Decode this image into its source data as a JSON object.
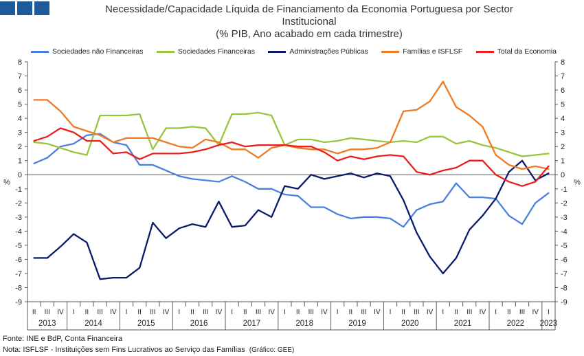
{
  "title": {
    "line1": "Necessidade/Capacidade Líquida de Financiamento da Economia Portuguesa por Sector",
    "line2": "Institucional",
    "line3": "(% PIB, Ano acabado em cada trimestre)"
  },
  "footer": {
    "source": "Fonte: INE e  BdP, Conta Financeira",
    "note": "Nota: ISFLSF - Instituições sem Fins Lucrativos ao Serviço das Famílias",
    "credit": "(Gráfico: GEE)"
  },
  "chart_data": {
    "type": "line",
    "ylabel_left": "%",
    "ylabel_right": "%",
    "ylim": [
      -9,
      8
    ],
    "yticks": [
      8,
      7,
      6,
      5,
      4,
      3,
      2,
      1,
      0,
      -1,
      -2,
      -3,
      -4,
      -5,
      -6,
      -7,
      -8,
      -9
    ],
    "grid": false,
    "legend_position": "top",
    "x_quarters": [
      "II",
      "III",
      "IV",
      "I",
      "II",
      "III",
      "IV",
      "I",
      "II",
      "III",
      "IV",
      "I",
      "II",
      "III",
      "IV",
      "I",
      "II",
      "III",
      "IV",
      "I",
      "II",
      "III",
      "IV",
      "I",
      "II",
      "III",
      "IV",
      "I",
      "II",
      "III",
      "IV",
      "I",
      "II",
      "III",
      "IV",
      "I",
      "II",
      "III",
      "IV",
      "I"
    ],
    "year_labels": [
      {
        "label": "2013",
        "start": 0,
        "end": 2
      },
      {
        "label": "2014",
        "start": 3,
        "end": 6
      },
      {
        "label": "2015",
        "start": 7,
        "end": 10
      },
      {
        "label": "2016",
        "start": 11,
        "end": 14
      },
      {
        "label": "2017",
        "start": 15,
        "end": 18
      },
      {
        "label": "2018",
        "start": 19,
        "end": 22
      },
      {
        "label": "2019",
        "start": 23,
        "end": 26
      },
      {
        "label": "2020",
        "start": 27,
        "end": 30
      },
      {
        "label": "2021",
        "start": 31,
        "end": 34
      },
      {
        "label": "2022",
        "start": 35,
        "end": 38
      },
      {
        "label": "2023",
        "start": 39,
        "end": 39
      }
    ],
    "series": [
      {
        "name": "Sociedades não Financeiras",
        "color": "#4a7fe0",
        "values": [
          0.8,
          1.2,
          2.0,
          2.2,
          2.8,
          2.9,
          2.3,
          2.1,
          0.7,
          0.7,
          0.3,
          -0.1,
          -0.3,
          -0.4,
          -0.5,
          -0.1,
          -0.5,
          -1.0,
          -1.0,
          -1.4,
          -1.5,
          -2.3,
          -2.3,
          -2.8,
          -3.1,
          -3.0,
          -3.0,
          -3.1,
          -3.7,
          -2.5,
          -2.1,
          -1.9,
          -0.6,
          -1.6,
          -1.6,
          -1.7,
          -2.9,
          -3.5,
          -2.0,
          -1.3
        ]
      },
      {
        "name": "Sociedades Financeiras",
        "color": "#99c53a",
        "values": [
          2.3,
          2.2,
          1.9,
          1.6,
          1.4,
          4.2,
          4.2,
          4.2,
          4.3,
          1.8,
          3.3,
          3.3,
          3.4,
          3.3,
          2.1,
          4.3,
          4.3,
          4.4,
          4.2,
          2.1,
          2.5,
          2.5,
          2.3,
          2.4,
          2.6,
          2.5,
          2.4,
          2.3,
          2.4,
          2.3,
          2.7,
          2.7,
          2.2,
          2.4,
          2.1,
          1.9,
          1.6,
          1.3,
          1.4,
          1.5
        ]
      },
      {
        "name": "Administrações Públicas",
        "color": "#0a1a6b",
        "values": [
          -5.9,
          -5.9,
          -5.1,
          -4.2,
          -4.8,
          -7.4,
          -7.3,
          -7.3,
          -6.6,
          -3.4,
          -4.5,
          -3.8,
          -3.5,
          -3.7,
          -1.9,
          -3.7,
          -3.6,
          -2.5,
          -3.0,
          -0.8,
          -1.0,
          0.0,
          -0.3,
          -0.1,
          0.1,
          -0.2,
          0.1,
          -0.1,
          -1.8,
          -4.1,
          -5.8,
          -7.0,
          -5.9,
          -3.9,
          -2.9,
          -1.7,
          0.2,
          1.0,
          -0.4,
          0.1
        ]
      },
      {
        "name": "Famílias e ISFLSF",
        "color": "#f07a22",
        "values": [
          5.3,
          5.3,
          4.5,
          3.4,
          3.1,
          2.8,
          2.3,
          2.6,
          2.6,
          2.6,
          2.3,
          2.0,
          1.9,
          2.5,
          2.3,
          1.8,
          1.8,
          1.2,
          1.9,
          2.1,
          1.9,
          1.8,
          1.8,
          1.5,
          1.8,
          1.8,
          1.9,
          2.3,
          4.5,
          4.6,
          5.2,
          6.6,
          4.8,
          4.2,
          3.4,
          1.4,
          0.7,
          0.4,
          0.6,
          0.4
        ]
      },
      {
        "name": "Total da Economia",
        "color": "#e8201c",
        "values": [
          2.4,
          2.7,
          3.3,
          3.0,
          2.4,
          2.4,
          1.5,
          1.6,
          1.1,
          1.5,
          1.5,
          1.5,
          1.6,
          1.8,
          2.1,
          2.3,
          2.0,
          2.1,
          2.1,
          2.1,
          2.0,
          2.0,
          1.6,
          1.0,
          1.3,
          1.1,
          1.3,
          1.4,
          1.3,
          0.2,
          0.0,
          0.3,
          0.5,
          1.0,
          1.0,
          0.0,
          -0.5,
          -0.8,
          -0.5,
          0.6
        ]
      }
    ]
  }
}
